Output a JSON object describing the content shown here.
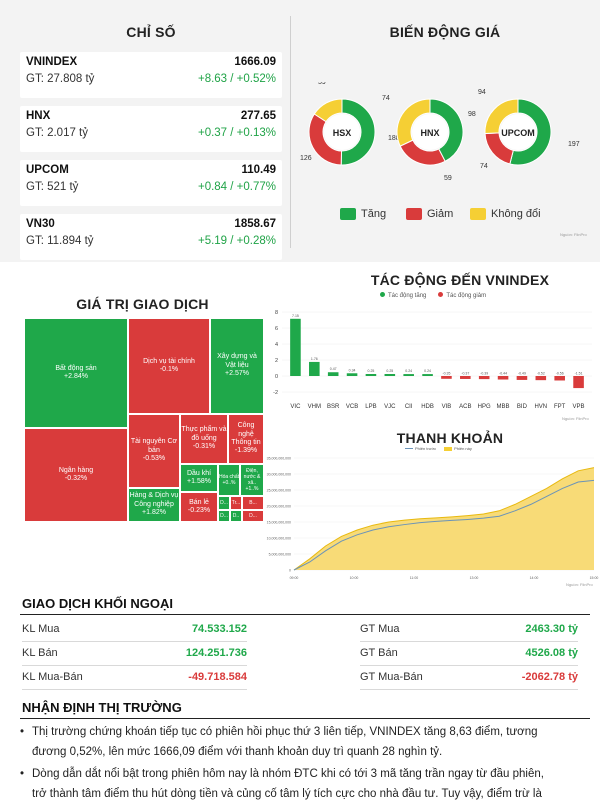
{
  "indices_title": "CHỈ SỐ",
  "indices": [
    {
      "name": "VNINDEX",
      "gt": "GT: 27.808 tỷ",
      "value": "1666.09",
      "change": "+8.63 / +0.52%"
    },
    {
      "name": "HNX",
      "gt": "GT: 2.017 tỷ",
      "value": "277.65",
      "change": "+0.37 / +0.13%"
    },
    {
      "name": "UPCOM",
      "gt": "GT: 521 tỷ",
      "value": "110.49",
      "change": "+0.84 / +0.77%"
    },
    {
      "name": "VN30",
      "gt": "GT: 11.894 tỷ",
      "value": "1858.67",
      "change": "+5.19 / +0.28%"
    }
  ],
  "price_title": "BIẾN ĐỘNG GIÁ",
  "price_legend": [
    "Tăng",
    "Giảm",
    "Không đổi"
  ],
  "source_note": "Nguồn: FiinPro",
  "colors": {
    "up": "#1fa84a",
    "down": "#d93b3b",
    "flat": "#f5cf34",
    "accent": "#1a1a1a"
  },
  "treemap_title": "GIÁ TRỊ GIAO DỊCH",
  "impact_title": "TÁC ĐỘNG ĐẾN VNINDEX",
  "impact_legend": [
    "Tác động tăng",
    "Tác động giảm"
  ],
  "liquidity_title": "THANH KHOẢN",
  "liquidity_legend": [
    "Phiên trước",
    "Phiên này"
  ],
  "foreign_title": "GIAO DỊCH KHỐI NGOẠI",
  "foreign_left": [
    {
      "label": "KL Mua",
      "value": "74.533.152"
    },
    {
      "label": "KL Bán",
      "value": "124.251.736"
    },
    {
      "label": "KL Mua-Bán",
      "value": "-49.718.584"
    }
  ],
  "foreign_right": [
    {
      "label": "GT Mua",
      "value": "2463.30 tỷ"
    },
    {
      "label": "GT Bán",
      "value": "4526.08 tỷ"
    },
    {
      "label": "GT Mua-Bán",
      "value": "-2062.78 tỷ"
    }
  ],
  "comment_title": "NHẬN ĐỊNH THỊ TRƯỜNG",
  "comment_1a": "Thị trường chứng khoán tiếp tục có phiên hồi phục thứ 3 liên tiếp, VNINDEX tăng 8,63 điểm, tương",
  "comment_1b": "đương 0,52%, lên mức 1666,09 điểm với thanh khoản duy trì quanh 28 nghìn tỷ.",
  "comment_2a": "Dòng dẫn dắt nổi bật trong phiên hôm nay là nhóm ĐTC khi có tới 3 mã tăng trần ngay từ đầu phiên,",
  "comment_2b": "trở thành tâm điểm thu hút dòng tiền và củng cố tâm lý tích cực cho nhà đầu tư. Tuy vậy, điểm trừ là",
  "chart_data": [
    {
      "type": "pie",
      "title": "HSX",
      "values": [
        188,
        126,
        59
      ],
      "labels": [
        "Tăng",
        "Giảm",
        "Không đổi"
      ]
    },
    {
      "type": "pie",
      "title": "HNX",
      "values": [
        98,
        59,
        74
      ],
      "labels": [
        "Tăng",
        "Giảm",
        "Không đổi"
      ]
    },
    {
      "type": "pie",
      "title": "UPCOM",
      "values": [
        197,
        74,
        94
      ],
      "labels": [
        "Tăng",
        "Giảm",
        "Không đổi"
      ]
    },
    {
      "type": "treemap",
      "title": "GIÁ TRỊ GIAO DỊCH",
      "items": [
        {
          "name": "Bất động sản",
          "change": "+2.84%",
          "dir": "up"
        },
        {
          "name": "Ngân hàng",
          "change": "-0.32%",
          "dir": "down"
        },
        {
          "name": "Dịch vụ tài chính",
          "change": "-0.1%",
          "dir": "down"
        },
        {
          "name": "Xây dựng và Vật liệu",
          "change": "+2.57%",
          "dir": "up"
        },
        {
          "name": "Tài nguyên Cơ bản",
          "change": "-0.53%",
          "dir": "down"
        },
        {
          "name": "Thực phẩm và đồ uống",
          "change": "-0.31%",
          "dir": "down"
        },
        {
          "name": "Công nghệ Thông tin",
          "change": "-1.39%",
          "dir": "down"
        },
        {
          "name": "Hàng & Dịch vụ Công nghiệp",
          "change": "+1.82%",
          "dir": "up"
        },
        {
          "name": "Dầu khí",
          "change": "+1.58%",
          "dir": "up"
        },
        {
          "name": "Bán lẻ",
          "change": "-0.23%",
          "dir": "down"
        },
        {
          "name": "Hóa chất",
          "change": "+0..%",
          "dir": "up"
        },
        {
          "name": "Điện, nước & xă..",
          "change": "+1..%",
          "dir": "up"
        },
        {
          "name": "D...",
          "change": "",
          "dir": "up"
        },
        {
          "name": "Tr...",
          "change": "",
          "dir": "down"
        },
        {
          "name": "B...",
          "change": "",
          "dir": "down"
        },
        {
          "name": "D...",
          "change": "",
          "dir": "up"
        },
        {
          "name": "D..",
          "change": "",
          "dir": "up"
        },
        {
          "name": "D...",
          "change": "",
          "dir": "down"
        }
      ]
    },
    {
      "type": "bar",
      "title": "TÁC ĐỘNG ĐẾN VNINDEX",
      "categories": [
        "VIC",
        "VHM",
        "BSR",
        "VCB",
        "LPB",
        "VJC",
        "CII",
        "HDB",
        "VIB",
        "ACB",
        "HPG",
        "MBB",
        "BID",
        "HVN",
        "FPT",
        "VPB"
      ],
      "values": [
        7.15,
        1.76,
        0.47,
        0.34,
        0.25,
        0.25,
        0.24,
        0.24,
        -0.35,
        -0.37,
        -0.39,
        -0.44,
        -0.49,
        -0.52,
        -0.56,
        -1.51
      ],
      "value_labels": [
        "7.15",
        "1.76",
        "0.47",
        "0.34",
        "0.25",
        "0.25",
        "0.24",
        "0.24",
        "-0.35",
        "-0.37",
        "-0.39",
        "-0.44",
        "-0.49",
        "-0.52",
        "-0.56",
        "-1.51"
      ],
      "yticks": [
        "8",
        "6",
        "4",
        "2",
        "0",
        "-2"
      ],
      "ylim": [
        -2,
        8
      ]
    },
    {
      "type": "area",
      "title": "THANH KHOẢN",
      "series": [
        {
          "name": "Phiên trước",
          "x": [
            "09:00",
            "09:15",
            "09:30",
            "09:45",
            "10:00",
            "10:15",
            "10:30",
            "10:45",
            "11:00",
            "11:15",
            "11:30",
            "13:00",
            "13:15",
            "13:30",
            "13:45",
            "14:00",
            "14:15",
            "14:30",
            "14:45",
            "15:00"
          ],
          "values": [
            0,
            2.5,
            6,
            9,
            11,
            12.5,
            13.5,
            14.2,
            14.8,
            15.2,
            15.5,
            15.8,
            16.2,
            16.8,
            18.5,
            20.5,
            23,
            25.5,
            27.5,
            28
          ]
        },
        {
          "name": "Phiên này",
          "x": [
            "09:00",
            "09:15",
            "09:30",
            "09:45",
            "10:00",
            "10:15",
            "10:30",
            "10:45",
            "11:00",
            "11:15",
            "11:30",
            "13:00",
            "13:15",
            "13:30",
            "13:45",
            "14:00",
            "14:15",
            "14:30",
            "14:45",
            "15:00"
          ],
          "values": [
            0,
            3.5,
            7.5,
            10.5,
            12.5,
            14,
            15,
            15.6,
            16,
            16.3,
            16.6,
            17,
            17.5,
            18.5,
            20.5,
            23,
            25.5,
            28.5,
            31,
            32
          ]
        }
      ],
      "yticks": [
        "35,000,000,000",
        "30,000,000,000",
        "25,000,000,000",
        "20,000,000,000",
        "15,000,000,000",
        "10,000,000,000",
        "5,000,000,000",
        "0"
      ],
      "xticks": [
        "09:00",
        "10:00",
        "11:00",
        "13:00",
        "14:00",
        "15:00"
      ],
      "ylim": [
        0,
        35
      ]
    }
  ]
}
